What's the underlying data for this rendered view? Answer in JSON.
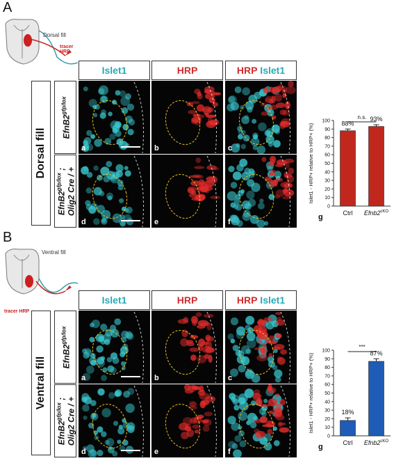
{
  "sections": [
    {
      "letter": "A",
      "schematic": {
        "fill_label": "Dorsal fill",
        "tracer_label": "tracer HRP"
      },
      "row_label": "Dorsal  fill",
      "headers": [
        {
          "parts": [
            {
              "text": "Islet1",
              "color": "cyan"
            }
          ]
        },
        {
          "parts": [
            {
              "text": "HRP",
              "color": "red"
            }
          ]
        },
        {
          "parts": [
            {
              "text": "HRP",
              "color": "red"
            },
            {
              "text": " Islet1",
              "color": "cyan"
            }
          ]
        }
      ],
      "genotypes": [
        {
          "main": "EfnB2",
          "sup": "gfp/lox"
        },
        {
          "main": "EfnB2",
          "sup": "gfp/lox",
          "semi": " ;",
          "line2": "Olig2 Cre / +"
        }
      ],
      "panel_labels": [
        "a",
        "b",
        "c",
        "d",
        "e",
        "f"
      ],
      "g_label": "g"
    },
    {
      "letter": "B",
      "schematic": {
        "fill_label": "Ventral fill",
        "tracer_label": "tracer HRP"
      },
      "row_label": "Ventral  fill",
      "headers": [
        {
          "parts": [
            {
              "text": "Islet1",
              "color": "cyan"
            }
          ]
        },
        {
          "parts": [
            {
              "text": "HRP",
              "color": "red"
            }
          ]
        },
        {
          "parts": [
            {
              "text": "HRP",
              "color": "red"
            },
            {
              "text": " Islet1",
              "color": "cyan"
            }
          ]
        }
      ],
      "genotypes": [
        {
          "main": "EfnB2",
          "sup": "gfp/lox"
        },
        {
          "main": "EfnB2",
          "sup": "gfp/lox",
          "semi": " ;",
          "line2": "Olig2 Cre / +"
        }
      ],
      "panel_labels": [
        "a",
        "b",
        "c",
        "d",
        "e",
        "f"
      ],
      "g_label": "g"
    }
  ],
  "chart_data": [
    {
      "type": "bar",
      "categories": [
        "Ctrl",
        "Efnb2cKO"
      ],
      "category_display": [
        {
          "text": "Ctrl",
          "sup": ""
        },
        {
          "text": "Efnb2",
          "sup": "cKO"
        }
      ],
      "values": [
        88,
        93
      ],
      "errors": [
        2,
        2
      ],
      "value_labels": [
        "88%",
        "93%"
      ],
      "color": "#c0281d",
      "ylabel": "Islet1 - HRP+ relative to HRP+ (%)",
      "ylim": [
        0,
        100
      ],
      "yticks": [
        0,
        10,
        20,
        30,
        40,
        50,
        60,
        70,
        80,
        90,
        100
      ],
      "significance": "n.s."
    },
    {
      "type": "bar",
      "categories": [
        "Ctrl",
        "Efnb2cKO"
      ],
      "category_display": [
        {
          "text": "Ctrl",
          "sup": ""
        },
        {
          "text": "Efnb2",
          "sup": "cKO"
        }
      ],
      "values": [
        18,
        87
      ],
      "errors": [
        3,
        3
      ],
      "value_labels": [
        "18%",
        "87%"
      ],
      "color": "#1f5cb5",
      "ylabel": "Islet1 - HRP+ relative to HRP+ (%)",
      "ylim": [
        0,
        100
      ],
      "yticks": [
        0,
        10,
        20,
        30,
        40,
        50,
        60,
        70,
        80,
        90,
        100
      ],
      "significance": "***"
    }
  ]
}
